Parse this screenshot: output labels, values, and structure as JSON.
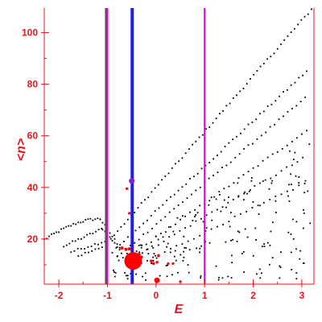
{
  "chart_data": {
    "type": "scatter",
    "xlabel": "E",
    "ylabel": "<n>",
    "xlim": [
      -2.3,
      3.25
    ],
    "ylim": [
      2.5,
      109.5
    ],
    "grid": false,
    "legend": "none",
    "x_ticks": [
      -2,
      -1,
      0,
      1,
      2,
      3
    ],
    "x_tick_labels": [
      "-2",
      "-1",
      "0",
      "1",
      "2",
      "3"
    ],
    "y_ticks": [
      20,
      40,
      60,
      80,
      100
    ],
    "y_tick_labels": [
      "20",
      "40",
      "60",
      "80",
      "100"
    ],
    "axis_color": "#e8141c",
    "vertical_lines": [
      {
        "x": -1.03,
        "color": "#555555",
        "width": 2.5
      },
      {
        "x": -1.0,
        "color": "#e000e0",
        "width": 2
      },
      {
        "x": -0.49,
        "color": "#1e1ee6",
        "width": 4
      },
      {
        "x": 1.0,
        "color": "#e000e0",
        "width": 2
      }
    ],
    "highlight_points": [
      {
        "x": -0.47,
        "y": 11.5,
        "size": 11,
        "color": "#ff0000"
      },
      {
        "x": -0.5,
        "y": 42.5,
        "size": 3.5,
        "color": "#7a22cc"
      },
      {
        "x": 0.02,
        "y": 4.0,
        "size": 3.5,
        "color": "#ff0000"
      },
      {
        "x": -0.62,
        "y": 16.0,
        "size": 2,
        "color": "#ff0000"
      },
      {
        "x": -0.7,
        "y": 16.5,
        "size": 2,
        "color": "#ff0000"
      },
      {
        "x": -0.55,
        "y": 16.2,
        "size": 2,
        "color": "#ff0000"
      },
      {
        "x": -0.35,
        "y": 14.0,
        "size": 2,
        "color": "#ff0000"
      },
      {
        "x": -0.3,
        "y": 13.0,
        "size": 1.8,
        "color": "#ff0000"
      },
      {
        "x": -0.1,
        "y": 11.5,
        "size": 1.8,
        "color": "#ff0000"
      },
      {
        "x": -0.05,
        "y": 10.5,
        "size": 1.8,
        "color": "#ff0000"
      },
      {
        "x": 0.02,
        "y": 11.0,
        "size": 1.8,
        "color": "#ff0000"
      },
      {
        "x": 0.05,
        "y": 13.5,
        "size": 1.8,
        "color": "#ff0000"
      },
      {
        "x": 0.25,
        "y": 10.5,
        "size": 1.6,
        "color": "#ff0000"
      },
      {
        "x": 0.35,
        "y": 10.5,
        "size": 1.6,
        "color": "#ff0000"
      },
      {
        "x": 0.5,
        "y": 3.5,
        "size": 1.6,
        "color": "#ff0000"
      },
      {
        "x": -0.55,
        "y": 30.0,
        "size": 1.6,
        "color": "#ff0000"
      },
      {
        "x": -0.6,
        "y": 39.5,
        "size": 1.6,
        "color": "#ff0000"
      }
    ],
    "bands": [
      {
        "x_start": -2.3,
        "x_end": -1.15,
        "y_start": 19.8,
        "y_end": 27.8,
        "shape": "arc_up",
        "step": 0.05
      },
      {
        "x_start": -1.15,
        "x_end": -0.75,
        "y_start": 27.8,
        "y_end": 17.0,
        "shape": "linear",
        "step": 0.05
      },
      {
        "x_start": -1.9,
        "x_end": -1.1,
        "y_start": 17.2,
        "y_end": 24.0,
        "shape": "linear",
        "step": 0.06
      },
      {
        "x_start": -1.1,
        "x_end": -0.75,
        "y_start": 24.0,
        "y_end": 16.0,
        "shape": "linear",
        "step": 0.05
      },
      {
        "x_start": -1.75,
        "x_end": -1.0,
        "y_start": 15.0,
        "y_end": 19.5,
        "shape": "linear",
        "step": 0.07
      },
      {
        "x_start": -1.6,
        "x_end": -1.05,
        "y_start": 13.5,
        "y_end": 17.0,
        "shape": "linear",
        "step": 0.07
      },
      {
        "x_start": -1.0,
        "x_end": 3.2,
        "y_start": 18.5,
        "y_end": 109.0,
        "shape": "linear",
        "step": 0.07
      },
      {
        "x_start": -0.9,
        "x_end": 3.1,
        "y_start": 15.0,
        "y_end": 85.0,
        "shape": "linear",
        "step": 0.08
      },
      {
        "x_start": -0.8,
        "x_end": 3.1,
        "y_start": 13.0,
        "y_end": 75.0,
        "shape": "linear",
        "step": 0.09
      },
      {
        "x_start": -0.6,
        "x_end": 3.1,
        "y_start": 12.5,
        "y_end": 62.0,
        "shape": "linear",
        "step": 0.1
      },
      {
        "x_start": -0.5,
        "x_end": 3.1,
        "y_start": 12.0,
        "y_end": 52.0,
        "shape": "linear",
        "step": 0.11
      },
      {
        "x_start": -0.3,
        "x_end": 3.1,
        "y_start": 10.5,
        "y_end": 42.0,
        "shape": "linear",
        "step": 0.12
      }
    ],
    "scatter_region": {
      "x_range": [
        -0.9,
        3.2
      ],
      "y_floor": 4.0,
      "n_points": 180
    }
  }
}
